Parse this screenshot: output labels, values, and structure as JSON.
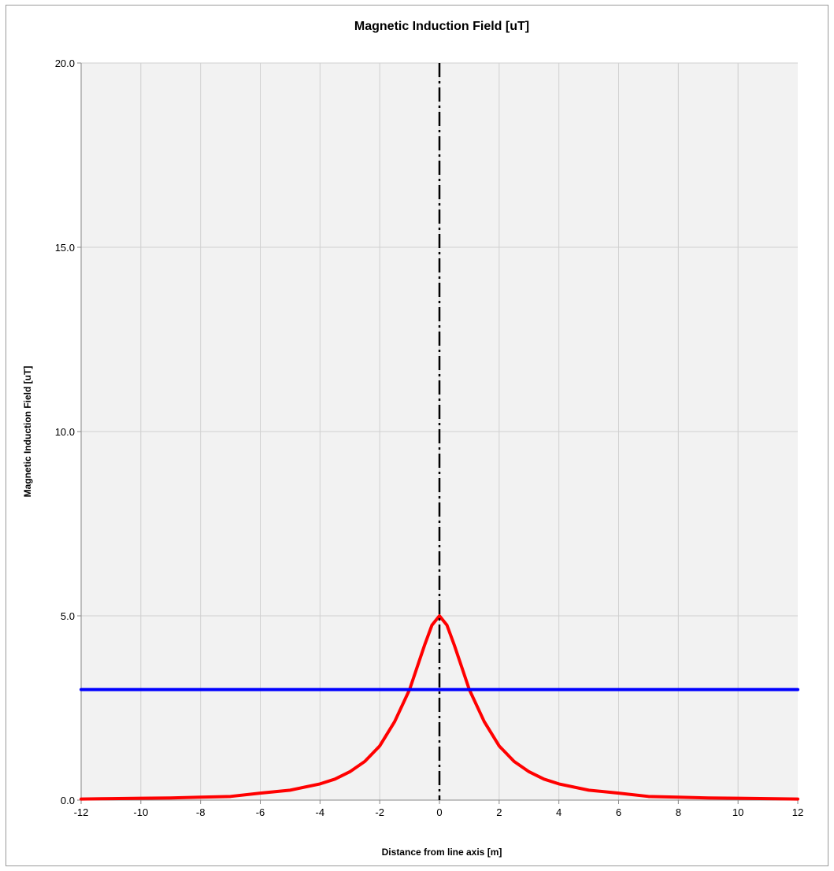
{
  "chart_data": {
    "type": "line",
    "title": "Magnetic Induction Field [uT]",
    "xlabel": "Distance from line axis [m]",
    "ylabel": "Magnetic Induction Field  [uT]",
    "xlim": [
      -12,
      12
    ],
    "ylim": [
      0,
      20
    ],
    "xticks": [
      "-12",
      "-10",
      "-8",
      "-6",
      "-4",
      "-2",
      "0",
      "2",
      "4",
      "6",
      "8",
      "10",
      "12"
    ],
    "yticks": [
      "0.0",
      "5.0",
      "10.0",
      "15.0",
      "20.0"
    ],
    "grid": true,
    "legend": "none",
    "series": [
      {
        "color": "#ff0000",
        "style": "solid",
        "x": [
          -12,
          -11,
          -10,
          -9,
          -8,
          -7,
          -6,
          -5,
          -4,
          -3.5,
          -3,
          -2.5,
          -2,
          -1.5,
          -1,
          -0.75,
          -0.5,
          -0.25,
          0,
          0.25,
          0.5,
          0.75,
          1,
          1.5,
          2,
          2.5,
          3,
          3.5,
          4,
          5,
          6,
          7,
          8,
          9,
          10,
          11,
          12
        ],
        "y": [
          0.03,
          0.04,
          0.05,
          0.06,
          0.08,
          0.1,
          0.19,
          0.27,
          0.44,
          0.57,
          0.77,
          1.05,
          1.47,
          2.13,
          3.0,
          3.6,
          4.2,
          4.75,
          5.0,
          4.75,
          4.2,
          3.6,
          3.0,
          2.13,
          1.47,
          1.05,
          0.77,
          0.57,
          0.44,
          0.27,
          0.19,
          0.1,
          0.08,
          0.06,
          0.05,
          0.04,
          0.03
        ]
      },
      {
        "color": "#0000ff",
        "style": "solid",
        "x": [
          -12,
          12
        ],
        "y": [
          3.0,
          3.0
        ]
      }
    ],
    "vertical_line": {
      "x": 0,
      "color": "#000000",
      "style": "dash-dot"
    }
  },
  "colors": {
    "plot_background": "#f2f2f2",
    "grid": "#d0d0d0",
    "axis": "#888888"
  }
}
